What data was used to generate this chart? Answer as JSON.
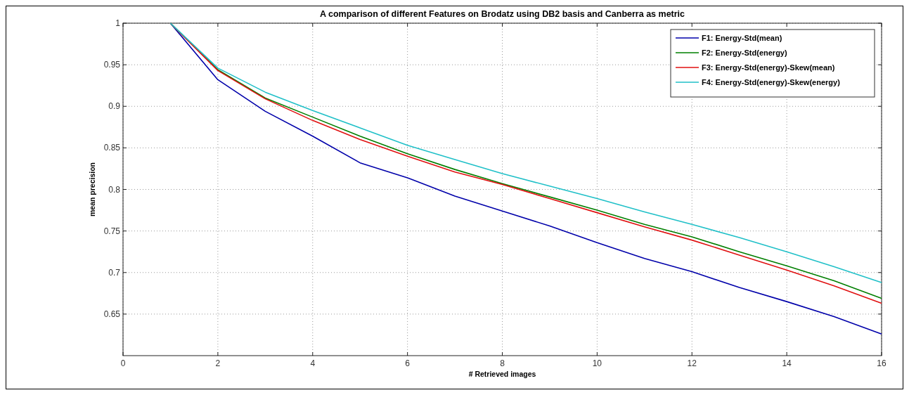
{
  "chart_data": {
    "type": "line",
    "title": "A comparison of different Features on Brodatz using DB2 basis and Canberra as metric",
    "xlabel": "# Retrieved images",
    "ylabel": "mean precision",
    "x": [
      1,
      2,
      3,
      4,
      5,
      6,
      7,
      8,
      9,
      10,
      11,
      12,
      13,
      14,
      15,
      16
    ],
    "series": [
      {
        "name": "F1: Energy-Std(mean)",
        "color": "#0000aa",
        "values": [
          1.0,
          0.932,
          0.894,
          0.864,
          0.832,
          0.814,
          0.792,
          0.774,
          0.756,
          0.736,
          0.717,
          0.701,
          0.682,
          0.665,
          0.647,
          0.626
        ]
      },
      {
        "name": "F2: Energy-Std(energy)",
        "color": "#007f00",
        "values": [
          1.0,
          0.944,
          0.91,
          0.887,
          0.864,
          0.843,
          0.824,
          0.807,
          0.791,
          0.775,
          0.758,
          0.743,
          0.725,
          0.708,
          0.69,
          0.669
        ]
      },
      {
        "name": "F3: Energy-Std(energy)-Skew(mean)",
        "color": "#e01010",
        "values": [
          1.0,
          0.943,
          0.909,
          0.883,
          0.86,
          0.84,
          0.821,
          0.806,
          0.789,
          0.772,
          0.755,
          0.739,
          0.721,
          0.703,
          0.684,
          0.663
        ]
      },
      {
        "name": "F4: Energy-Std(energy)-Skew(energy)",
        "color": "#20c0c8",
        "values": [
          1.0,
          0.946,
          0.917,
          0.895,
          0.874,
          0.853,
          0.836,
          0.819,
          0.804,
          0.789,
          0.773,
          0.758,
          0.742,
          0.725,
          0.707,
          0.688
        ]
      }
    ],
    "xlim": [
      0,
      16
    ],
    "xticks": [
      0,
      2,
      4,
      6,
      8,
      10,
      12,
      14,
      16
    ],
    "ylim": [
      0.6,
      1
    ],
    "yticks": [
      0.65,
      0.7,
      0.75,
      0.8,
      0.85,
      0.9,
      0.95,
      1
    ],
    "grid": true,
    "legend": "top right",
    "marker": "none",
    "line_style": "solid"
  }
}
